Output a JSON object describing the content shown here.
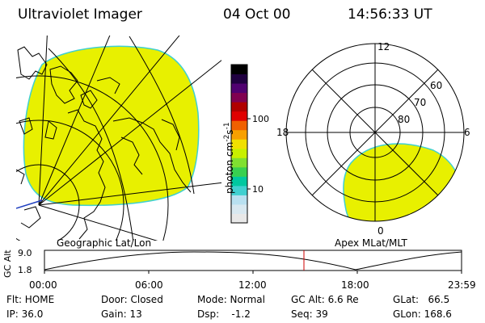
{
  "header": {
    "title": "Ultraviolet Imager",
    "date": "04 Oct 00",
    "time": "14:56:33 UT"
  },
  "colorbar": {
    "unit_label": "photon cm",
    "unit_exp1": "-2",
    "unit_mid": "s",
    "unit_exp2": "-1",
    "tick_high": "100",
    "tick_low": "10",
    "colors": [
      "#e8e8e8",
      "#d8e8f0",
      "#b8e0f0",
      "#40d0d0",
      "#00c8a0",
      "#38d050",
      "#80e030",
      "#c8f000",
      "#f0e000",
      "#f8a000",
      "#f06000",
      "#e00000",
      "#b00000",
      "#800050",
      "#500070",
      "#200040",
      "#000000"
    ]
  },
  "geo_map": {
    "label": "Geographic Lat/Lon",
    "fill_color": "#e8f000"
  },
  "polar_plot": {
    "label": "Apex MLat/MLT",
    "mlt_top": "12",
    "mlt_left": "18",
    "mlt_right": "6",
    "mlt_bottom": "0",
    "lat_labels": [
      "60",
      "70",
      "80"
    ],
    "fill_color": "#e8f000"
  },
  "timeline": {
    "ylabel": "GC Alt",
    "y_top": "9.0",
    "y_bottom": "1.8",
    "x_ticks": [
      "00:00",
      "06:00",
      "12:00",
      "18:00",
      "23:59"
    ],
    "current_marker_color": "#cc0000"
  },
  "footer": {
    "flt": "Flt: HOME",
    "door": "Door: Closed",
    "mode": "Mode: Normal",
    "gc_alt": "GC Alt: 6.6 Re",
    "glat": "GLat:   66.5",
    "ip": "IP: 36.0",
    "gain": "Gain: 13",
    "dsp": "Dsp:    -1.2",
    "seq": "Seq: 39",
    "glon": "GLon: 168.6"
  }
}
